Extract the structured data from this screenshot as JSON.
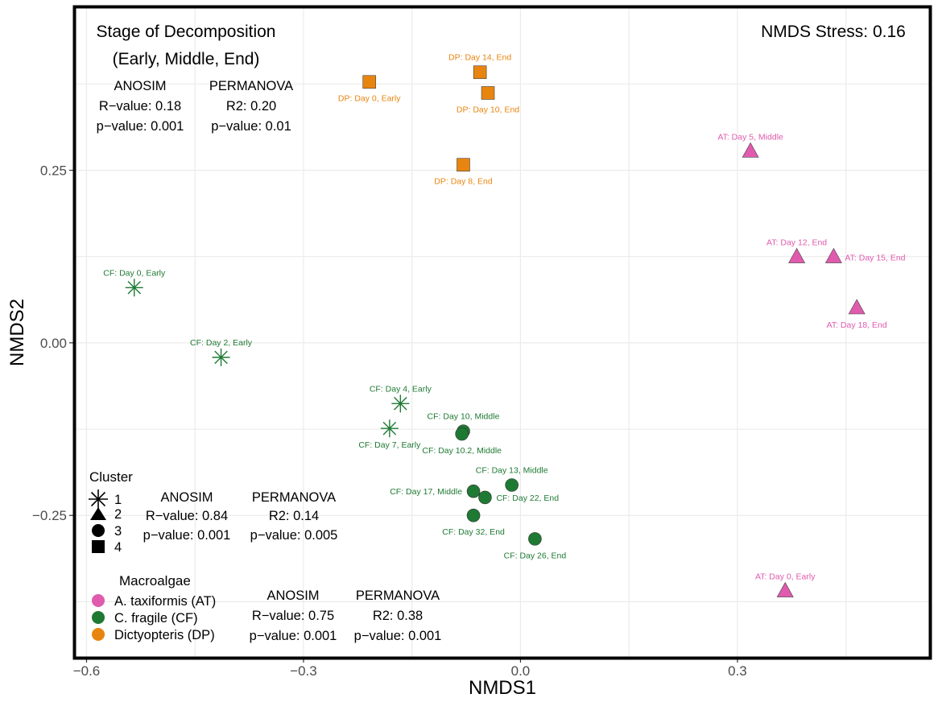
{
  "chart_data": {
    "type": "scatter",
    "xlabel": "NMDS1",
    "ylabel": "NMDS2",
    "xlim": [
      -0.615,
      0.565
    ],
    "ylim": [
      -0.455,
      0.485
    ],
    "xticks": [
      -0.6,
      -0.3,
      0.0,
      0.3
    ],
    "xtick_labels": [
      "−0.6",
      "−0.3",
      "0.0",
      "0.3"
    ],
    "yticks": [
      -0.25,
      0.0,
      0.25
    ],
    "ytick_labels": [
      "−0.25",
      "0.00",
      "0.25"
    ],
    "grid": true,
    "stress_text": "NMDS Stress: 0.16",
    "colors": {
      "AT": "#e05aad",
      "CF": "#1e7a33",
      "DP": "#e8850f",
      "frame": "#000000",
      "grid": "#ebebeb"
    },
    "points": [
      {
        "label": "DP: Day 0, Early",
        "group": "DP",
        "cluster": 4,
        "x": -0.209,
        "y": 0.378,
        "label_pos": "below"
      },
      {
        "label": "DP: Day 14, End",
        "group": "DP",
        "cluster": 4,
        "x": -0.056,
        "y": 0.392,
        "label_pos": "above"
      },
      {
        "label": "DP: Day 10, End",
        "group": "DP",
        "cluster": 4,
        "x": -0.045,
        "y": 0.362,
        "label_pos": "below"
      },
      {
        "label": "DP: Day 8, End",
        "group": "DP",
        "cluster": 4,
        "x": -0.079,
        "y": 0.258,
        "label_pos": "below"
      },
      {
        "label": "AT: Day 5, Middle",
        "group": "AT",
        "cluster": 2,
        "x": 0.318,
        "y": 0.277,
        "label_pos": "above"
      },
      {
        "label": "AT: Day 12, End",
        "group": "AT",
        "cluster": 2,
        "x": 0.382,
        "y": 0.124,
        "label_pos": "above"
      },
      {
        "label": "AT: Day 15, End",
        "group": "AT",
        "cluster": 2,
        "x": 0.433,
        "y": 0.124,
        "label_pos": "right"
      },
      {
        "label": "AT: Day 18, End",
        "group": "AT",
        "cluster": 2,
        "x": 0.465,
        "y": 0.05,
        "label_pos": "below"
      },
      {
        "label": "AT: Day 0, Early",
        "group": "AT",
        "cluster": 2,
        "x": 0.366,
        "y": -0.36,
        "label_pos": "above"
      },
      {
        "label": "CF: Day 0, Early",
        "group": "CF",
        "cluster": 1,
        "x": -0.534,
        "y": 0.08,
        "label_pos": "above"
      },
      {
        "label": "CF: Day 2, Early",
        "group": "CF",
        "cluster": 1,
        "x": -0.414,
        "y": -0.021,
        "label_pos": "above"
      },
      {
        "label": "CF: Day 4, Early",
        "group": "CF",
        "cluster": 1,
        "x": -0.166,
        "y": -0.088,
        "label_pos": "above"
      },
      {
        "label": "CF: Day 7, Early",
        "group": "CF",
        "cluster": 1,
        "x": -0.181,
        "y": -0.124,
        "label_pos": "below"
      },
      {
        "label": "CF: Day 10, Middle",
        "group": "CF",
        "cluster": 3,
        "x": -0.079,
        "y": -0.128,
        "label_pos": "above"
      },
      {
        "label": "CF: Day 10.2, Middle",
        "group": "CF",
        "cluster": 3,
        "x": -0.081,
        "y": -0.132,
        "label_pos": "below"
      },
      {
        "label": "CF: Day 13, Middle",
        "group": "CF",
        "cluster": 3,
        "x": -0.012,
        "y": -0.206,
        "label_pos": "above"
      },
      {
        "label": "CF: Day 17, Middle",
        "group": "CF",
        "cluster": 3,
        "x": -0.065,
        "y": -0.215,
        "label_pos": "left"
      },
      {
        "label": "CF: Day 22, End",
        "group": "CF",
        "cluster": 3,
        "x": -0.049,
        "y": -0.224,
        "label_pos": "right"
      },
      {
        "label": "CF: Day 32, End",
        "group": "CF",
        "cluster": 3,
        "x": -0.065,
        "y": -0.25,
        "label_pos": "below"
      },
      {
        "label": "CF: Day 26, End",
        "group": "CF",
        "cluster": 3,
        "x": 0.02,
        "y": -0.284,
        "label_pos": "below"
      }
    ]
  },
  "stage_box": {
    "title_line1": "Stage of Decomposition",
    "title_line2": "(Early, Middle, End)",
    "anosim_title": "ANOSIM",
    "anosim_r": "R−value: 0.18",
    "anosim_p": "p−value: 0.001",
    "permanova_title": "PERMANOVA",
    "permanova_r2": "R2: 0.20",
    "permanova_p": "p−value: 0.01"
  },
  "cluster_box": {
    "legend_title": "Cluster",
    "legend_items": [
      "1",
      "2",
      "3",
      "4"
    ],
    "anosim_title": "ANOSIM",
    "anosim_r": "R−value: 0.84",
    "anosim_p": "p−value: 0.001",
    "permanova_title": "PERMANOVA",
    "permanova_r2": "R2: 0.14",
    "permanova_p": "p−value: 0.005"
  },
  "macro_box": {
    "legend_title": "Macroalgae",
    "legend_items": [
      {
        "label": "A. taxiformis (AT)",
        "group": "AT"
      },
      {
        "label": "C. fragile (CF)",
        "group": "CF"
      },
      {
        "label": "Dictyopteris (DP)",
        "group": "DP"
      }
    ],
    "anosim_title": "ANOSIM",
    "anosim_r": "R−value: 0.75",
    "anosim_p": "p−value: 0.001",
    "permanova_title": "PERMANOVA",
    "permanova_r2": "R2: 0.38",
    "permanova_p": "p−value: 0.001"
  }
}
